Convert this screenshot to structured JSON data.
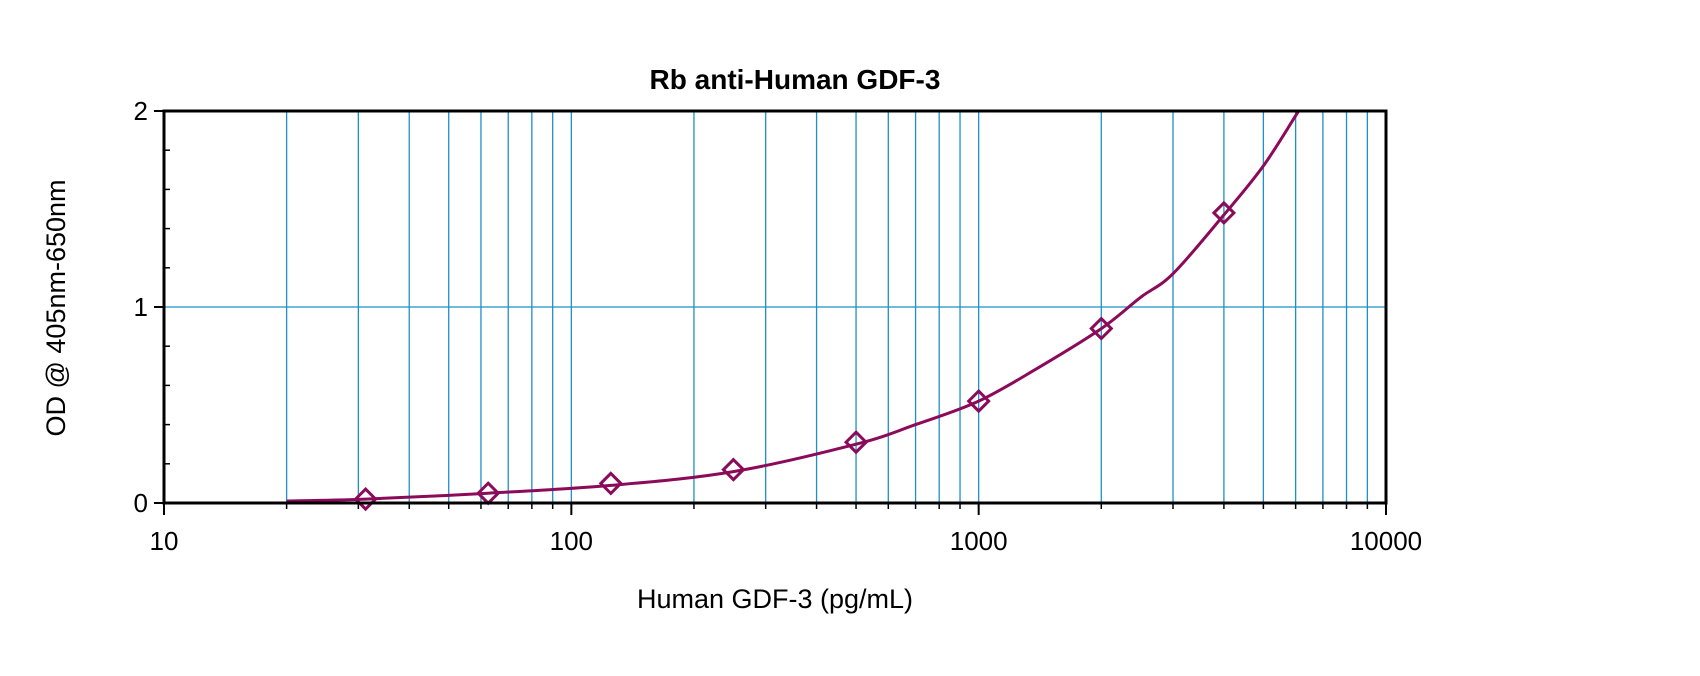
{
  "chart_data": {
    "type": "scatter",
    "title": "Rb anti-Human GDF-3",
    "xlabel": "Human GDF-3 (pg/mL)",
    "ylabel": "OD @ 405nm-650nm",
    "xscale": "log",
    "xlim": [
      10,
      10000
    ],
    "ylim": [
      0,
      2
    ],
    "x_ticks": [
      10,
      100,
      1000,
      10000
    ],
    "x_tick_labels": [
      "10",
      "100",
      "1000",
      "10000"
    ],
    "y_ticks": [
      0,
      1,
      2
    ],
    "y_tick_labels": [
      "0",
      "1",
      "2"
    ],
    "grid": true,
    "marker": "diamond",
    "colors": {
      "series": "#8B0A5A",
      "grid": "#1E90C8",
      "axes": "#000000"
    },
    "series": [
      {
        "x": [
          31.25,
          62.5,
          125,
          250,
          500,
          1000,
          2000,
          4000
        ],
        "y": [
          0.02,
          0.05,
          0.1,
          0.17,
          0.31,
          0.52,
          0.89,
          1.48
        ]
      }
    ],
    "fit_curve": {
      "x": [
        20,
        31.25,
        62.5,
        125,
        250,
        500,
        700,
        1000,
        1400,
        2000,
        2500,
        3000,
        4000,
        5000,
        6100
      ],
      "y": [
        0.01,
        0.02,
        0.05,
        0.09,
        0.16,
        0.3,
        0.4,
        0.52,
        0.69,
        0.89,
        1.05,
        1.17,
        1.47,
        1.72,
        2.0
      ]
    }
  }
}
